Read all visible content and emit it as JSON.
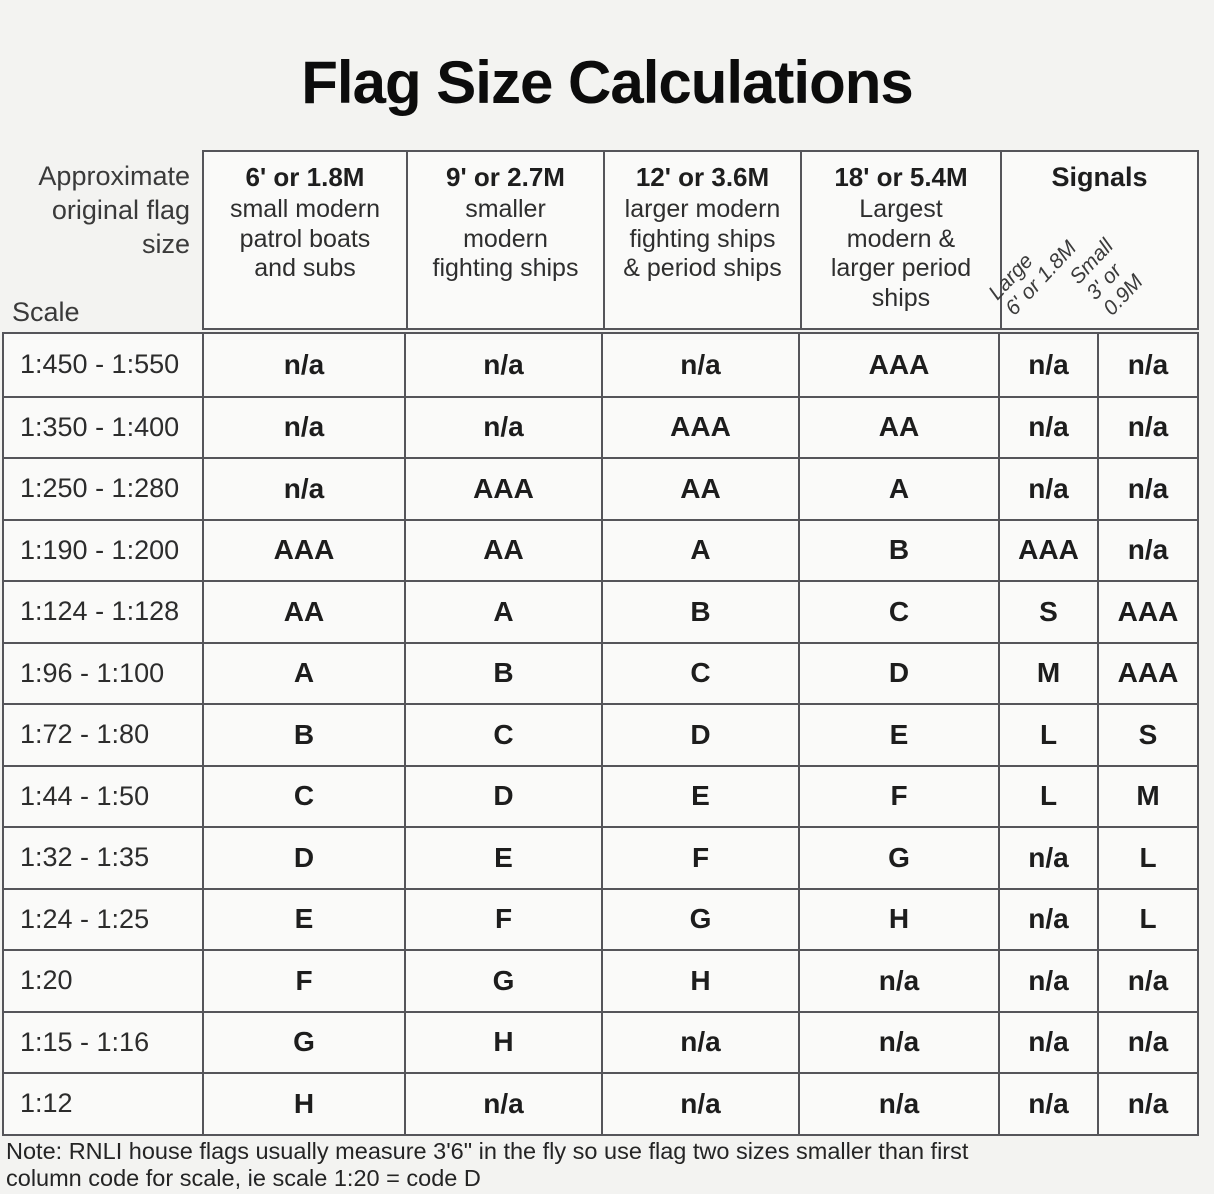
{
  "title": "Flag Size Calculations",
  "header": {
    "corner_label": "Approximate\noriginal flag\nsize",
    "scale_label": "Scale",
    "columns": [
      {
        "size": "6' or 1.8M",
        "description": "small modern\npatrol boats\nand subs"
      },
      {
        "size": "9' or 2.7M",
        "description": "smaller\nmodern\nfighting ships"
      },
      {
        "size": "12' or 3.6M",
        "description": "larger modern\nfighting ships\n& period ships"
      },
      {
        "size": "18' or 5.4M",
        "description": "Largest\nmodern &\nlarger period\nships"
      }
    ],
    "signals": {
      "title": "Signals",
      "large_label": "Large\n6' or 1.8M",
      "small_label": "Small\n3' or 0.9M"
    }
  },
  "table": {
    "column_keys": [
      "scale",
      "6ft_1_8m",
      "9ft_2_7m",
      "12ft_3_6m",
      "18ft_5_4m",
      "signals_large",
      "signals_small"
    ],
    "rows": [
      {
        "scale": "1:450 - 1:550",
        "codes": [
          "n/a",
          "n/a",
          "n/a",
          "AAA",
          "n/a",
          "n/a"
        ]
      },
      {
        "scale": "1:350 - 1:400",
        "codes": [
          "n/a",
          "n/a",
          "AAA",
          "AA",
          "n/a",
          "n/a"
        ]
      },
      {
        "scale": "1:250 - 1:280",
        "codes": [
          "n/a",
          "AAA",
          "AA",
          "A",
          "n/a",
          "n/a"
        ]
      },
      {
        "scale": "1:190 - 1:200",
        "codes": [
          "AAA",
          "AA",
          "A",
          "B",
          "AAA",
          "n/a"
        ]
      },
      {
        "scale": "1:124 - 1:128",
        "codes": [
          "AA",
          "A",
          "B",
          "C",
          "S",
          "AAA"
        ]
      },
      {
        "scale": "1:96 - 1:100",
        "codes": [
          "A",
          "B",
          "C",
          "D",
          "M",
          "AAA"
        ]
      },
      {
        "scale": "1:72 - 1:80",
        "codes": [
          "B",
          "C",
          "D",
          "E",
          "L",
          "S"
        ]
      },
      {
        "scale": "1:44 - 1:50",
        "codes": [
          "C",
          "D",
          "E",
          "F",
          "L",
          "M"
        ]
      },
      {
        "scale": "1:32 - 1:35",
        "codes": [
          "D",
          "E",
          "F",
          "G",
          "n/a",
          "L"
        ]
      },
      {
        "scale": "1:24 - 1:25",
        "codes": [
          "E",
          "F",
          "G",
          "H",
          "n/a",
          "L"
        ]
      },
      {
        "scale": "1:20",
        "codes": [
          "F",
          "G",
          "H",
          "n/a",
          "n/a",
          "n/a"
        ]
      },
      {
        "scale": "1:15 - 1:16",
        "codes": [
          "G",
          "H",
          "n/a",
          "n/a",
          "n/a",
          "n/a"
        ]
      },
      {
        "scale": "1:12",
        "codes": [
          "H",
          "n/a",
          "n/a",
          "n/a",
          "n/a",
          "n/a"
        ]
      }
    ]
  },
  "note": "Note: RNLI house flags usually measure 3'6\" in the fly so use flag two sizes smaller than first\ncolumn code for scale,  ie scale 1:20 = code D",
  "colors": {
    "border": "#55555a",
    "page_background": "#f3f3f1",
    "cell_background": "#fafaf9",
    "text": "#1d1d1d"
  }
}
